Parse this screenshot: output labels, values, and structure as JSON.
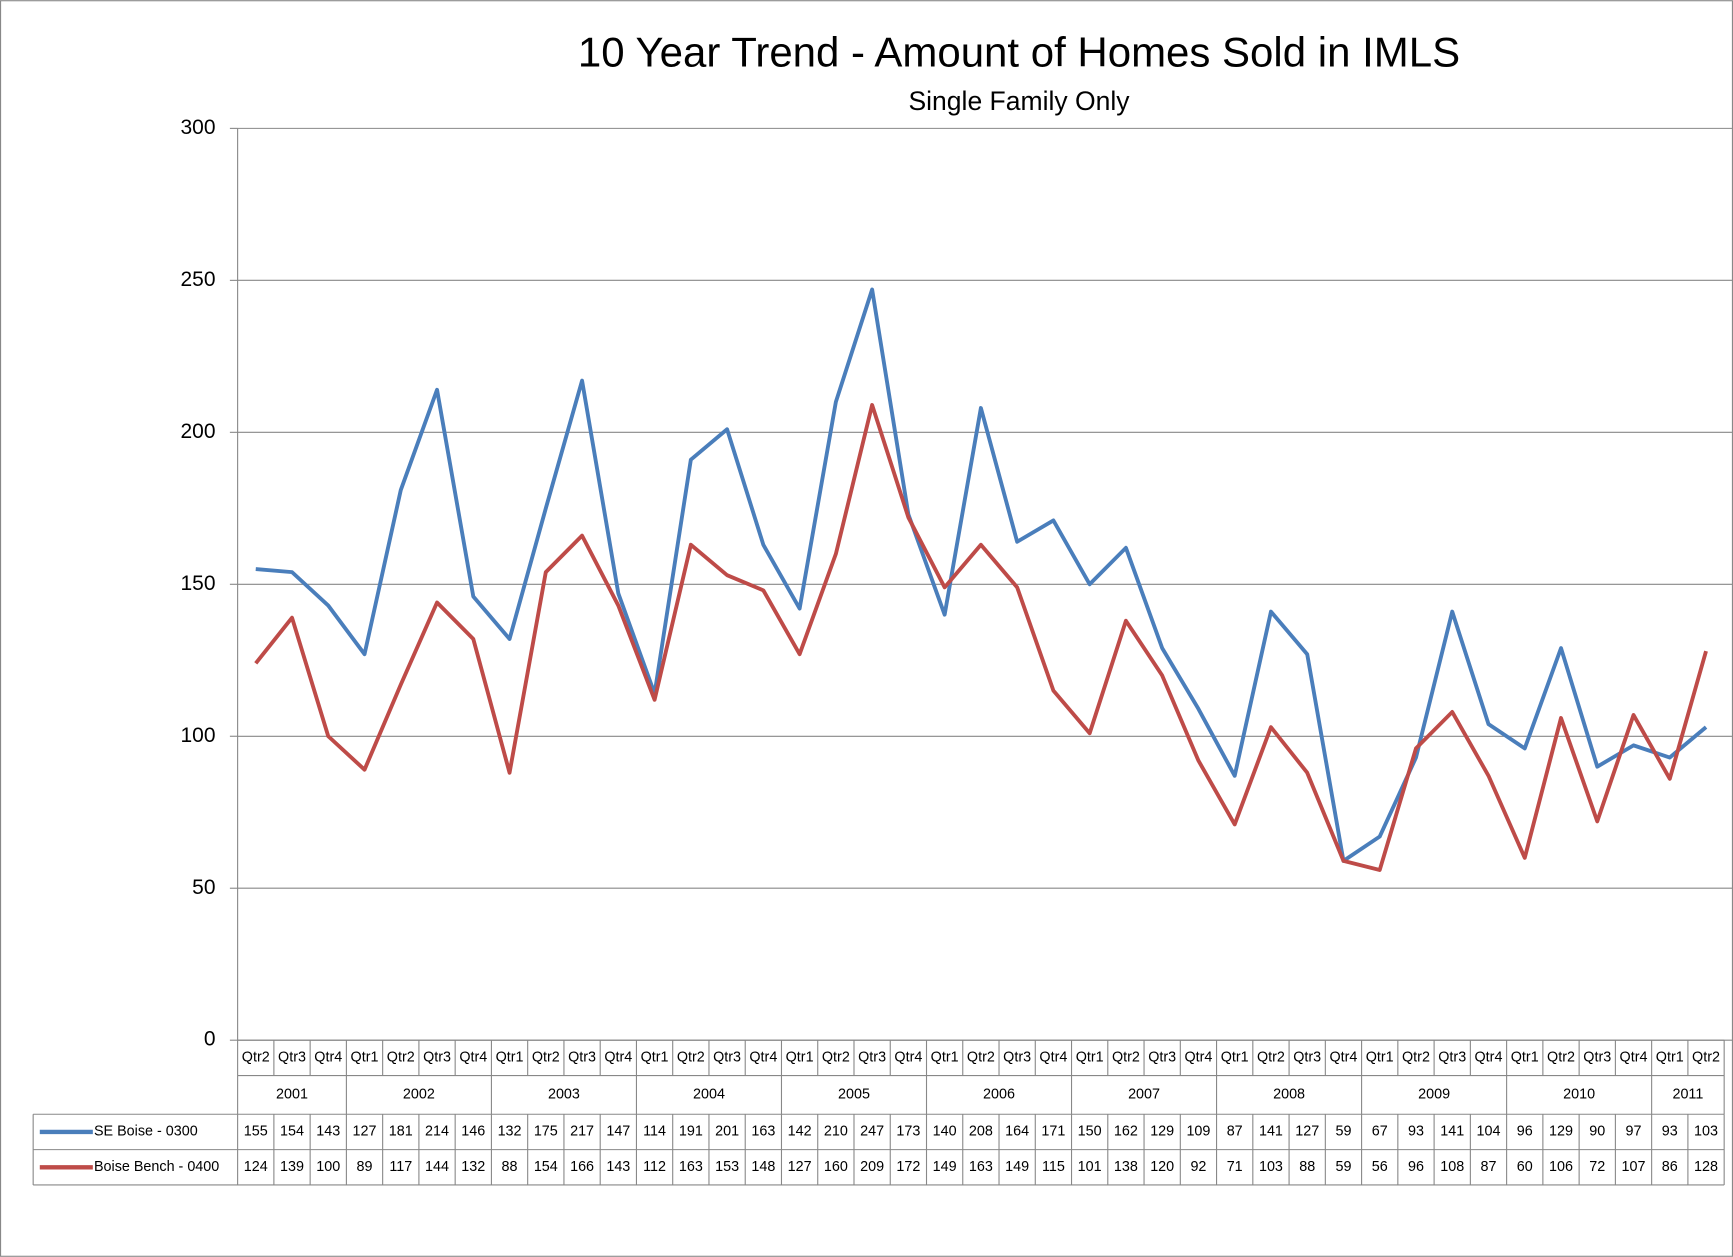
{
  "chart_data": {
    "type": "line",
    "title": "10 Year Trend  - Amount of Homes Sold in IMLS",
    "subtitle": "Single Family Only",
    "groups": [
      {
        "label": "2001",
        "categories": [
          "Qtr2",
          "Qtr3",
          "Qtr4"
        ]
      },
      {
        "label": "2002",
        "categories": [
          "Qtr1",
          "Qtr2",
          "Qtr3",
          "Qtr4"
        ]
      },
      {
        "label": "2003",
        "categories": [
          "Qtr1",
          "Qtr2",
          "Qtr3",
          "Qtr4"
        ]
      },
      {
        "label": "2004",
        "categories": [
          "Qtr1",
          "Qtr2",
          "Qtr3",
          "Qtr4"
        ]
      },
      {
        "label": "2005",
        "categories": [
          "Qtr1",
          "Qtr2",
          "Qtr3",
          "Qtr4"
        ]
      },
      {
        "label": "2006",
        "categories": [
          "Qtr1",
          "Qtr2",
          "Qtr3",
          "Qtr4"
        ]
      },
      {
        "label": "2007",
        "categories": [
          "Qtr1",
          "Qtr2",
          "Qtr3",
          "Qtr4"
        ]
      },
      {
        "label": "2008",
        "categories": [
          "Qtr1",
          "Qtr2",
          "Qtr3",
          "Qtr4"
        ]
      },
      {
        "label": "2009",
        "categories": [
          "Qtr1",
          "Qtr2",
          "Qtr3",
          "Qtr4"
        ]
      },
      {
        "label": "2010",
        "categories": [
          "Qtr1",
          "Qtr2",
          "Qtr3",
          "Qtr4"
        ]
      },
      {
        "label": "2011",
        "categories": [
          "Qtr1",
          "Qtr2"
        ]
      }
    ],
    "series": [
      {
        "name": "SE Boise - 0300",
        "color": "#4a7ebb",
        "values": [
          155,
          154,
          143,
          127,
          181,
          214,
          146,
          132,
          175,
          217,
          147,
          114,
          191,
          201,
          163,
          142,
          210,
          247,
          173,
          140,
          208,
          164,
          171,
          150,
          162,
          129,
          109,
          87,
          141,
          127,
          59,
          67,
          93,
          141,
          104,
          96,
          129,
          90,
          97,
          93,
          103
        ]
      },
      {
        "name": "Boise Bench - 0400",
        "color": "#be4b48",
        "values": [
          124,
          139,
          100,
          89,
          117,
          144,
          132,
          88,
          154,
          166,
          143,
          112,
          163,
          153,
          148,
          127,
          160,
          209,
          172,
          149,
          163,
          149,
          115,
          101,
          138,
          120,
          92,
          71,
          103,
          88,
          59,
          56,
          96,
          108,
          87,
          60,
          106,
          72,
          107,
          86,
          128
        ]
      }
    ],
    "ylim": [
      0,
      300
    ],
    "yticks": [
      0,
      50,
      100,
      150,
      200,
      250,
      300
    ],
    "grid": true,
    "data_table": true
  }
}
